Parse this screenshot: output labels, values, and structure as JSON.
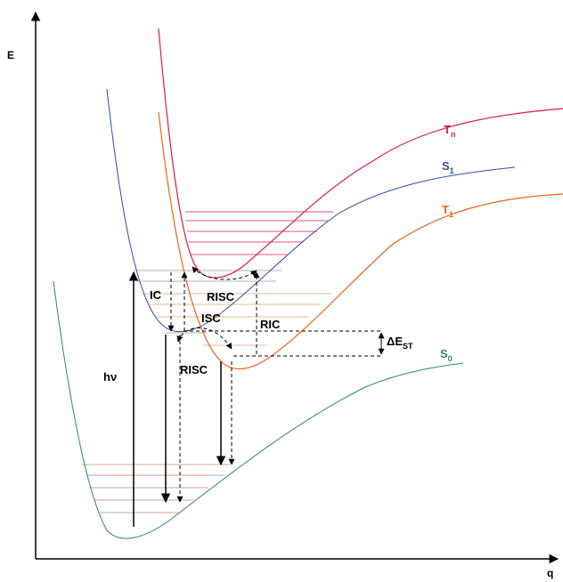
{
  "axes": {
    "y_label": "E",
    "x_label": "q"
  },
  "curves": {
    "s0": {
      "label": "S",
      "sub": "0",
      "color": "#2e8b57"
    },
    "s1": {
      "label": "S",
      "sub": "1",
      "color": "#2f4f9f"
    },
    "t1": {
      "label": "T",
      "sub": "1",
      "color": "#e8641e"
    },
    "tn": {
      "label": "T",
      "sub": "n",
      "color": "#d81b4a"
    }
  },
  "levels": {
    "s0_color": "#b58a7a",
    "s1_color": "#9a9a9a",
    "t1_color": "#e8a070",
    "tn_color": "#d81b4a"
  },
  "processes": {
    "hv": "hν",
    "ic": "IC",
    "isc": "ISC",
    "risc_upper": "RISC",
    "risc_lower": "RISC",
    "ric": "RIC",
    "delta_est": {
      "prefix": "ΔE",
      "sub": "ST"
    }
  }
}
